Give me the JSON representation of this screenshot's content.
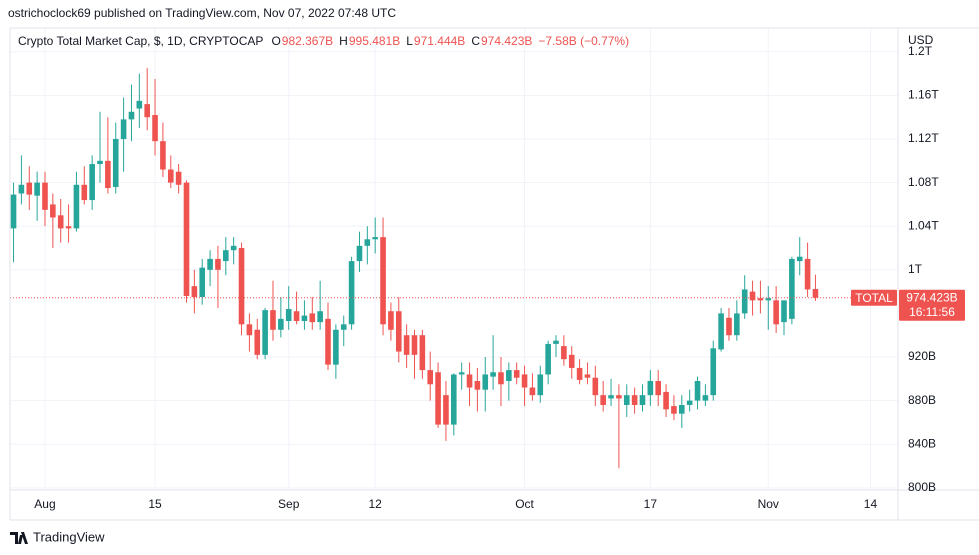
{
  "publisher": "ostrichoclock69 published on TradingView.com, Nov 07, 2022 07:48 UTC",
  "footer": "TradingView",
  "chart_data": {
    "type": "candlestick",
    "legend": {
      "name": "Crypto Total Market Cap, $, 1D, CRYPTOCAP",
      "items": [
        {
          "key": "O",
          "label": "982.367B"
        },
        {
          "key": "H",
          "label": "995.481B"
        },
        {
          "key": "L",
          "label": "971.444B"
        },
        {
          "key": "C",
          "label": "974.423B"
        }
      ],
      "change": "−7.58B (−0.77%)"
    },
    "currency": "USD",
    "up_color": "#26a69a",
    "down_color": "#ef5350",
    "open": [
      1038,
      1070,
      1080,
      1068,
      1080,
      1060,
      1050,
      1040,
      1038,
      1078,
      1064,
      1097,
      1100,
      1076,
      1120,
      1138,
      1148,
      1152,
      1142,
      1118,
      1092,
      1090,
      1080,
      985,
      975,
      1000,
      1010,
      1008,
      1018,
      1020,
      950,
      945,
      922,
      963,
      945,
      953,
      962,
      953,
      960,
      952,
      955,
      913,
      945,
      950,
      1008,
      1022,
      1028,
      1030,
      962,
      962,
      940,
      940,
      940,
      908,
      906,
      885,
      858,
      904,
      904,
      898,
      890,
      902,
      906,
      898,
      908,
      904,
      892,
      885,
      904,
      932,
      930,
      922,
      910,
      904,
      901,
      885,
      882,
      885,
      876,
      885,
      876,
      885,
      898,
      888,
      875,
      868,
      876,
      880,
      880,
      885,
      927,
      956,
      940,
      960,
      980,
      974,
      972,
      972,
      952,
      955,
      1008,
      1010,
      982.367
    ],
    "high": [
      1080,
      1105,
      1095,
      1090,
      1090,
      1070,
      1065,
      1060,
      1090,
      1095,
      1105,
      1145,
      1140,
      1135,
      1158,
      1170,
      1180,
      1185,
      1175,
      1135,
      1105,
      1097,
      1082,
      1000,
      1010,
      1018,
      1022,
      1030,
      1030,
      1025,
      960,
      955,
      965,
      990,
      975,
      985,
      980,
      972,
      975,
      990,
      970,
      950,
      958,
      1012,
      1035,
      1040,
      1048,
      1048,
      970,
      975,
      950,
      945,
      945,
      925,
      915,
      898,
      905,
      915,
      915,
      910,
      920,
      940,
      920,
      915,
      915,
      912,
      905,
      912,
      935,
      940,
      940,
      930,
      918,
      915,
      912,
      898,
      900,
      895,
      895,
      892,
      895,
      908,
      908,
      895,
      885,
      885,
      890,
      902,
      895,
      935,
      965,
      965,
      972,
      995,
      990,
      990,
      985,
      985,
      968,
      1012,
      1030,
      1025,
      995.481
    ],
    "low": [
      1007,
      1060,
      1055,
      1045,
      1040,
      1020,
      1025,
      1025,
      1035,
      1060,
      1055,
      1080,
      1070,
      1070,
      1090,
      1118,
      1130,
      1128,
      1105,
      1085,
      1075,
      1070,
      970,
      960,
      968,
      985,
      965,
      995,
      1005,
      940,
      925,
      918,
      918,
      935,
      938,
      945,
      950,
      945,
      945,
      945,
      908,
      900,
      930,
      945,
      998,
      1005,
      1015,
      940,
      935,
      915,
      910,
      900,
      900,
      880,
      855,
      843,
      848,
      890,
      875,
      870,
      870,
      890,
      875,
      880,
      895,
      875,
      880,
      878,
      895,
      920,
      912,
      900,
      895,
      895,
      875,
      870,
      875,
      818,
      865,
      868,
      870,
      875,
      875,
      865,
      862,
      855,
      870,
      872,
      875,
      880,
      925,
      935,
      935,
      955,
      958,
      960,
      945,
      942,
      940,
      950,
      995,
      975,
      971.444
    ],
    "close": [
      1069,
      1078,
      1069,
      1080,
      1055,
      1048,
      1038,
      1038,
      1078,
      1064,
      1097,
      1100,
      1075,
      1120,
      1138,
      1145,
      1155,
      1140,
      1118,
      1092,
      1080,
      1078,
      976,
      975,
      1002,
      1010,
      1000,
      1018,
      1022,
      950,
      940,
      922,
      963,
      945,
      955,
      964,
      953,
      958,
      952,
      962,
      913,
      945,
      950,
      1008,
      1022,
      1028,
      1030,
      950,
      945,
      925,
      922,
      922,
      908,
      895,
      858,
      858,
      904,
      906,
      892,
      890,
      904,
      906,
      895,
      908,
      901,
      892,
      885,
      904,
      932,
      935,
      918,
      910,
      899,
      901,
      885,
      876,
      885,
      882,
      885,
      876,
      885,
      898,
      885,
      872,
      868,
      876,
      880,
      898,
      885,
      928,
      960,
      940,
      960,
      982,
      972,
      972,
      974,
      950,
      972,
      1010,
      1012,
      982,
      974.423
    ],
    "last_label": {
      "name": "TOTAL",
      "price": "974.423B",
      "countdown": "16:11:56"
    },
    "ylim": [
      798,
      1220
    ],
    "yticks": [
      {
        "value": 800,
        "label": "800B"
      },
      {
        "value": 840,
        "label": "840B"
      },
      {
        "value": 880,
        "label": "880B"
      },
      {
        "value": 920,
        "label": "920B"
      },
      {
        "value": 1000,
        "label": "1T"
      },
      {
        "value": 1040,
        "label": "1.04T"
      },
      {
        "value": 1080,
        "label": "1.08T"
      },
      {
        "value": 1120,
        "label": "1.12T"
      },
      {
        "value": 1160,
        "label": "1.16T"
      },
      {
        "value": 1200,
        "label": "1.2T"
      }
    ],
    "xlim": [
      -0.45,
      112.5
    ],
    "xticks": [
      {
        "value": 4,
        "label": "Aug"
      },
      {
        "value": 18,
        "label": "15"
      },
      {
        "value": 35,
        "label": "Sep"
      },
      {
        "value": 46,
        "label": "12"
      },
      {
        "value": 65,
        "label": "Oct"
      },
      {
        "value": 81,
        "label": "17"
      },
      {
        "value": 96,
        "label": "Nov"
      },
      {
        "value": 109,
        "label": "14"
      }
    ],
    "grid": true
  }
}
